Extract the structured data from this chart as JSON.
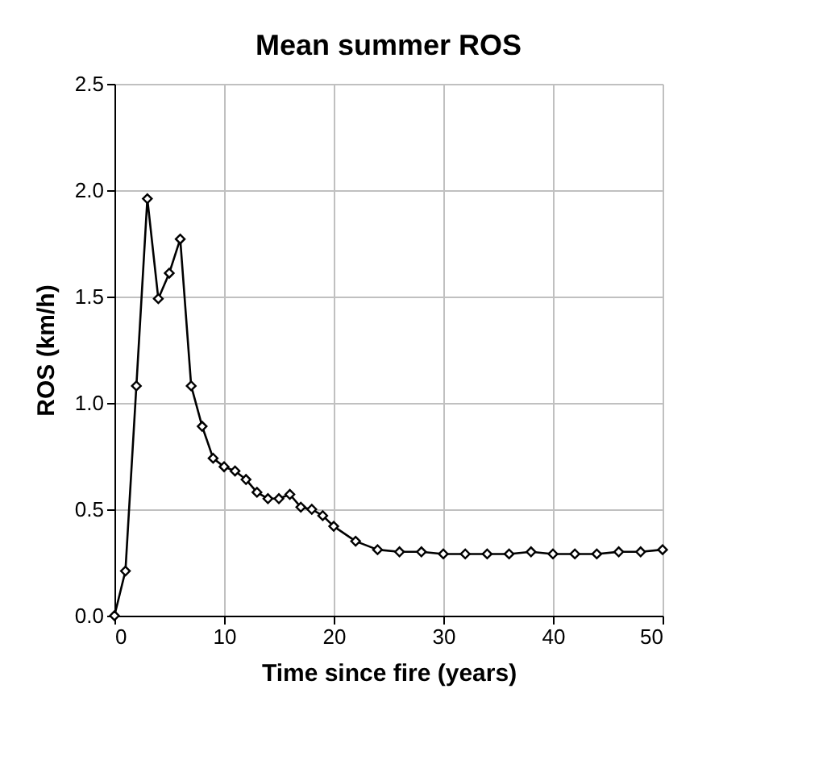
{
  "chart_data": {
    "type": "line",
    "title": "Mean summer ROS",
    "xlabel": "Time since fire (years)",
    "ylabel": "ROS (km/h)",
    "x": [
      0,
      1,
      2,
      3,
      4,
      5,
      6,
      7,
      8,
      9,
      10,
      11,
      12,
      13,
      14,
      15,
      16,
      17,
      18,
      19,
      20,
      22,
      24,
      26,
      28,
      30,
      32,
      34,
      36,
      38,
      40,
      42,
      44,
      46,
      48,
      50
    ],
    "series": [
      {
        "color": "#000000",
        "values": [
          0,
          0.21,
          1.08,
          1.96,
          1.49,
          1.61,
          1.77,
          1.08,
          0.89,
          0.74,
          0.7,
          0.68,
          0.64,
          0.58,
          0.55,
          0.55,
          0.57,
          0.51,
          0.5,
          0.47,
          0.42,
          0.35,
          0.31,
          0.3,
          0.3,
          0.29,
          0.29,
          0.29,
          0.29,
          0.3,
          0.29,
          0.29,
          0.29,
          0.3,
          0.3,
          0.31
        ]
      }
    ],
    "xlim": [
      0,
      50
    ],
    "xticks": [
      0,
      10,
      20,
      30,
      40,
      50
    ],
    "ylim": [
      0,
      2.5
    ],
    "yticks": [
      {
        "value": 0,
        "label": "0.0"
      },
      {
        "value": 0.5,
        "label": "0.5"
      },
      {
        "value": 1,
        "label": "1.0"
      },
      {
        "value": 1.5,
        "label": "1.5"
      },
      {
        "value": 2,
        "label": "2.0"
      },
      {
        "value": 2.5,
        "label": "2.5"
      }
    ],
    "grid": true,
    "marker": "diamond",
    "line_style": "solid"
  }
}
